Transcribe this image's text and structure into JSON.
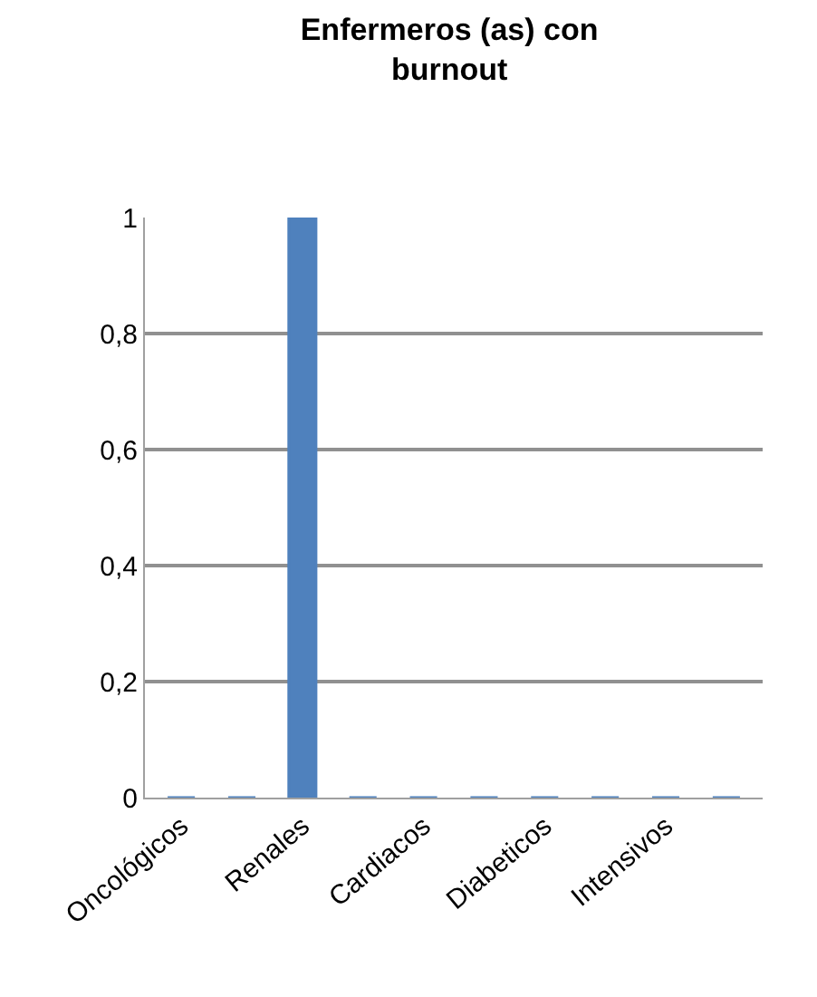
{
  "chart_data": {
    "type": "bar",
    "title": "Enfermeros (as) con burnout",
    "categories": [
      "Oncológicos",
      null,
      "Renales",
      null,
      "Cardiacos",
      null,
      "Diabeticos",
      null,
      "Intensivos",
      null
    ],
    "values": [
      0,
      0,
      1,
      0,
      0,
      0,
      0,
      0,
      0,
      0
    ],
    "color": "#4f81bd",
    "ylim": [
      0,
      1
    ],
    "yticks": [
      {
        "value": 0,
        "label": "0"
      },
      {
        "value": 0.2,
        "label": "0,2"
      },
      {
        "value": 0.4,
        "label": "0,4"
      },
      {
        "value": 0.6,
        "label": "0,6"
      },
      {
        "value": 0.8,
        "label": "0,8"
      },
      {
        "value": 1,
        "label": "1"
      }
    ],
    "grid": "y"
  }
}
